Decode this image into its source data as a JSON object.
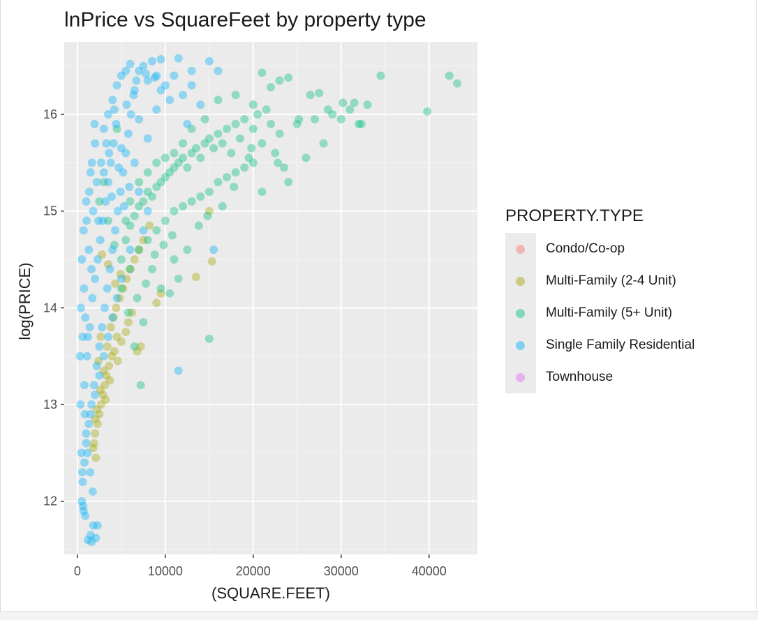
{
  "chart_data": {
    "type": "scatter",
    "title": "lnPrice vs SquareFeet by property type",
    "xlabel": "(SQUARE.FEET)",
    "ylabel": "log(PRICE)",
    "xlim": [
      -1500,
      45500
    ],
    "ylim": [
      11.45,
      16.75
    ],
    "x_ticks": [
      0,
      10000,
      20000,
      30000,
      40000
    ],
    "x_tick_labels": [
      "0",
      "10000",
      "20000",
      "30000",
      "40000"
    ],
    "y_ticks": [
      12,
      13,
      14,
      15,
      16
    ],
    "y_tick_labels": [
      "12",
      "13",
      "14",
      "15",
      "16"
    ],
    "grid": true,
    "legend_position": "right",
    "legend_title": "PROPERTY.TYPE",
    "series": [
      {
        "name": "Condo/Co-op",
        "color": "#F8766D",
        "points": []
      },
      {
        "name": "Multi-Family (2-4 Unit)",
        "color": "#A3A500",
        "points": [
          [
            1800,
            12.55
          ],
          [
            2000,
            12.7
          ],
          [
            2100,
            12.45
          ],
          [
            2300,
            12.8
          ],
          [
            2500,
            12.9
          ],
          [
            2700,
            13.0
          ],
          [
            2900,
            13.1
          ],
          [
            3100,
            13.2
          ],
          [
            3300,
            13.3
          ],
          [
            3600,
            13.4
          ],
          [
            3900,
            13.5
          ],
          [
            4200,
            13.55
          ],
          [
            4500,
            13.7
          ],
          [
            2600,
            13.15
          ],
          [
            3000,
            13.35
          ],
          [
            3400,
            13.6
          ],
          [
            3800,
            13.8
          ],
          [
            4100,
            13.9
          ],
          [
            4400,
            14.0
          ],
          [
            4800,
            14.1
          ],
          [
            5200,
            14.2
          ],
          [
            5600,
            14.3
          ],
          [
            6000,
            14.4
          ],
          [
            6500,
            14.5
          ],
          [
            3200,
            13.05
          ],
          [
            3700,
            13.25
          ],
          [
            4600,
            13.45
          ],
          [
            5000,
            13.65
          ],
          [
            5500,
            13.75
          ],
          [
            6200,
            13.95
          ],
          [
            7000,
            14.6
          ],
          [
            7500,
            14.7
          ],
          [
            8200,
            14.85
          ],
          [
            9000,
            14.05
          ],
          [
            9500,
            14.15
          ],
          [
            5800,
            13.85
          ],
          [
            4900,
            14.35
          ],
          [
            4300,
            14.25
          ],
          [
            3500,
            14.45
          ],
          [
            2800,
            14.55
          ],
          [
            13500,
            14.32
          ],
          [
            15300,
            14.48
          ],
          [
            15000,
            15.0
          ],
          [
            6800,
            13.55
          ],
          [
            7200,
            13.6
          ],
          [
            2200,
            12.95
          ],
          [
            2400,
            13.45
          ],
          [
            2650,
            13.7
          ],
          [
            1900,
            12.6
          ],
          [
            2050,
            12.85
          ]
        ]
      },
      {
        "name": "Multi-Family (5+ Unit)",
        "color": "#00BF7D",
        "points": [
          [
            5000,
            14.5
          ],
          [
            5500,
            14.7
          ],
          [
            6000,
            14.85
          ],
          [
            6500,
            14.95
          ],
          [
            7000,
            15.05
          ],
          [
            7500,
            15.1
          ],
          [
            8000,
            15.2
          ],
          [
            8500,
            15.15
          ],
          [
            9000,
            15.25
          ],
          [
            9500,
            15.3
          ],
          [
            10000,
            15.35
          ],
          [
            10500,
            15.4
          ],
          [
            11000,
            15.45
          ],
          [
            11500,
            15.5
          ],
          [
            12000,
            15.55
          ],
          [
            12500,
            15.45
          ],
          [
            13000,
            15.6
          ],
          [
            13500,
            15.65
          ],
          [
            14000,
            15.55
          ],
          [
            14500,
            15.7
          ],
          [
            15000,
            15.75
          ],
          [
            15500,
            15.65
          ],
          [
            16000,
            15.8
          ],
          [
            16500,
            15.7
          ],
          [
            17000,
            15.85
          ],
          [
            17500,
            15.6
          ],
          [
            18000,
            15.9
          ],
          [
            18500,
            15.75
          ],
          [
            19000,
            15.95
          ],
          [
            19500,
            15.55
          ],
          [
            20000,
            15.85
          ],
          [
            20500,
            16.0
          ],
          [
            21000,
            15.7
          ],
          [
            21500,
            16.05
          ],
          [
            22000,
            15.9
          ],
          [
            22500,
            15.6
          ],
          [
            23000,
            15.8
          ],
          [
            23500,
            15.45
          ],
          [
            24000,
            15.3
          ],
          [
            25000,
            15.9
          ],
          [
            26000,
            15.55
          ],
          [
            27000,
            15.95
          ],
          [
            28000,
            15.7
          ],
          [
            29000,
            16.0
          ],
          [
            30000,
            15.95
          ],
          [
            31000,
            16.05
          ],
          [
            32000,
            15.9
          ],
          [
            33000,
            16.1
          ],
          [
            34500,
            16.4
          ],
          [
            39800,
            16.03
          ],
          [
            42300,
            16.4
          ],
          [
            43200,
            16.32
          ],
          [
            30200,
            16.12
          ],
          [
            27500,
            16.22
          ],
          [
            26500,
            16.2
          ],
          [
            23000,
            16.35
          ],
          [
            24000,
            16.38
          ],
          [
            21000,
            16.43
          ],
          [
            22000,
            16.28
          ],
          [
            20000,
            16.1
          ],
          [
            18000,
            16.2
          ],
          [
            16000,
            16.15
          ],
          [
            14500,
            15.95
          ],
          [
            13000,
            15.85
          ],
          [
            12000,
            15.7
          ],
          [
            11000,
            15.6
          ],
          [
            10000,
            15.55
          ],
          [
            9000,
            15.5
          ],
          [
            8000,
            15.4
          ],
          [
            7000,
            15.3
          ],
          [
            6000,
            15.1
          ],
          [
            5500,
            14.9
          ],
          [
            5000,
            14.2
          ],
          [
            6000,
            14.4
          ],
          [
            7000,
            14.6
          ],
          [
            8000,
            14.7
          ],
          [
            9000,
            14.8
          ],
          [
            10000,
            14.9
          ],
          [
            11000,
            15.0
          ],
          [
            12000,
            15.05
          ],
          [
            13000,
            15.1
          ],
          [
            14000,
            15.15
          ],
          [
            15000,
            15.2
          ],
          [
            16000,
            15.3
          ],
          [
            17000,
            15.35
          ],
          [
            18000,
            15.4
          ],
          [
            19000,
            15.45
          ],
          [
            20000,
            15.5
          ],
          [
            21000,
            15.2
          ],
          [
            9500,
            14.2
          ],
          [
            10500,
            14.15
          ],
          [
            11500,
            14.3
          ],
          [
            8500,
            14.4
          ],
          [
            7500,
            13.85
          ],
          [
            6500,
            13.6
          ],
          [
            7200,
            13.2
          ],
          [
            11000,
            14.5
          ],
          [
            12500,
            14.6
          ],
          [
            15000,
            13.68
          ],
          [
            16500,
            15.05
          ],
          [
            4500,
            15.85
          ],
          [
            3000,
            15.3
          ],
          [
            2500,
            15.1
          ],
          [
            3500,
            14.9
          ],
          [
            4200,
            14.65
          ],
          [
            5800,
            13.95
          ],
          [
            6800,
            14.1
          ],
          [
            7800,
            14.25
          ],
          [
            8800,
            14.55
          ],
          [
            9800,
            14.65
          ],
          [
            10800,
            14.75
          ],
          [
            13800,
            14.85
          ],
          [
            14800,
            14.95
          ],
          [
            17800,
            15.25
          ],
          [
            19800,
            15.65
          ],
          [
            22800,
            15.5
          ],
          [
            25200,
            15.95
          ],
          [
            28500,
            16.05
          ],
          [
            31500,
            16.12
          ],
          [
            32300,
            15.9
          ]
        ]
      },
      {
        "name": "Single Family Residential",
        "color": "#00B0F6",
        "points": [
          [
            500,
            12.0
          ],
          [
            700,
            11.9
          ],
          [
            900,
            11.85
          ],
          [
            1200,
            11.6
          ],
          [
            1500,
            11.65
          ],
          [
            1800,
            11.75
          ],
          [
            2100,
            11.62
          ],
          [
            600,
            12.2
          ],
          [
            800,
            12.4
          ],
          [
            1000,
            12.6
          ],
          [
            1300,
            12.8
          ],
          [
            1600,
            13.0
          ],
          [
            1900,
            13.2
          ],
          [
            2200,
            13.4
          ],
          [
            2500,
            13.6
          ],
          [
            2800,
            13.8
          ],
          [
            3100,
            14.0
          ],
          [
            3400,
            14.2
          ],
          [
            3700,
            14.4
          ],
          [
            4000,
            14.6
          ],
          [
            4300,
            14.8
          ],
          [
            4600,
            15.0
          ],
          [
            4900,
            15.2
          ],
          [
            5200,
            15.4
          ],
          [
            5500,
            15.6
          ],
          [
            5800,
            15.8
          ],
          [
            6100,
            16.0
          ],
          [
            6400,
            16.2
          ],
          [
            6700,
            16.35
          ],
          [
            7000,
            16.45
          ],
          [
            7500,
            16.5
          ],
          [
            8000,
            16.35
          ],
          [
            8500,
            16.55
          ],
          [
            9000,
            16.4
          ],
          [
            9500,
            16.25
          ],
          [
            10000,
            16.3
          ],
          [
            11000,
            16.4
          ],
          [
            12000,
            16.2
          ],
          [
            13000,
            16.45
          ],
          [
            14000,
            16.1
          ],
          [
            15000,
            16.55
          ],
          [
            16000,
            16.45
          ],
          [
            11500,
            16.58
          ],
          [
            9500,
            16.57
          ],
          [
            6000,
            16.52
          ],
          [
            3500,
            16.0
          ],
          [
            4000,
            16.15
          ],
          [
            4500,
            16.3
          ],
          [
            5000,
            16.4
          ],
          [
            3000,
            15.85
          ],
          [
            2000,
            15.7
          ],
          [
            1500,
            15.4
          ],
          [
            1000,
            15.1
          ],
          [
            700,
            14.8
          ],
          [
            500,
            14.5
          ],
          [
            400,
            14.0
          ],
          [
            300,
            13.5
          ],
          [
            350,
            13.0
          ],
          [
            450,
            12.5
          ],
          [
            550,
            12.3
          ],
          [
            1100,
            13.5
          ],
          [
            1400,
            13.8
          ],
          [
            1700,
            14.1
          ],
          [
            2000,
            14.3
          ],
          [
            2300,
            14.5
          ],
          [
            2600,
            14.7
          ],
          [
            2900,
            14.9
          ],
          [
            3200,
            15.1
          ],
          [
            3500,
            15.3
          ],
          [
            3800,
            15.5
          ],
          [
            4100,
            15.7
          ],
          [
            800,
            13.2
          ],
          [
            1200,
            13.7
          ],
          [
            1600,
            14.4
          ],
          [
            2400,
            14.9
          ],
          [
            3000,
            15.4
          ],
          [
            3600,
            15.6
          ],
          [
            4400,
            15.9
          ],
          [
            5600,
            16.1
          ],
          [
            6500,
            15.5
          ],
          [
            7000,
            15.2
          ],
          [
            7500,
            14.8
          ],
          [
            8000,
            15.0
          ],
          [
            6000,
            14.6
          ],
          [
            5000,
            14.3
          ],
          [
            4500,
            14.1
          ],
          [
            4000,
            13.9
          ],
          [
            3500,
            13.7
          ],
          [
            3000,
            13.5
          ],
          [
            2500,
            13.3
          ],
          [
            2000,
            13.1
          ],
          [
            1500,
            12.9
          ],
          [
            1000,
            12.7
          ],
          [
            900,
            13.9
          ],
          [
            1300,
            14.6
          ],
          [
            1800,
            15.0
          ],
          [
            2200,
            15.3
          ],
          [
            2700,
            15.5
          ],
          [
            3300,
            15.7
          ],
          [
            4200,
            16.05
          ],
          [
            11500,
            13.35
          ],
          [
            15500,
            14.6
          ],
          [
            9000,
            16.05
          ],
          [
            10500,
            16.15
          ],
          [
            12500,
            15.9
          ],
          [
            8000,
            15.75
          ],
          [
            7000,
            15.95
          ],
          [
            6500,
            16.25
          ],
          [
            5500,
            16.45
          ],
          [
            600,
            13.7
          ],
          [
            750,
            14.2
          ],
          [
            1050,
            14.9
          ],
          [
            1350,
            15.2
          ],
          [
            1650,
            15.5
          ],
          [
            1950,
            15.9
          ],
          [
            850,
            12.9
          ],
          [
            1150,
            12.5
          ],
          [
            1450,
            12.3
          ],
          [
            1750,
            12.1
          ],
          [
            650,
            11.95
          ],
          [
            2300,
            11.75
          ],
          [
            1600,
            11.58
          ],
          [
            8800,
            16.38
          ],
          [
            7800,
            16.42
          ],
          [
            13000,
            16.3
          ],
          [
            5000,
            15.65
          ],
          [
            4700,
            15.45
          ],
          [
            5300,
            15.05
          ],
          [
            5900,
            15.25
          ],
          [
            3900,
            15.15
          ]
        ]
      },
      {
        "name": "Townhouse",
        "color": "#E76BF3",
        "points": []
      }
    ]
  }
}
